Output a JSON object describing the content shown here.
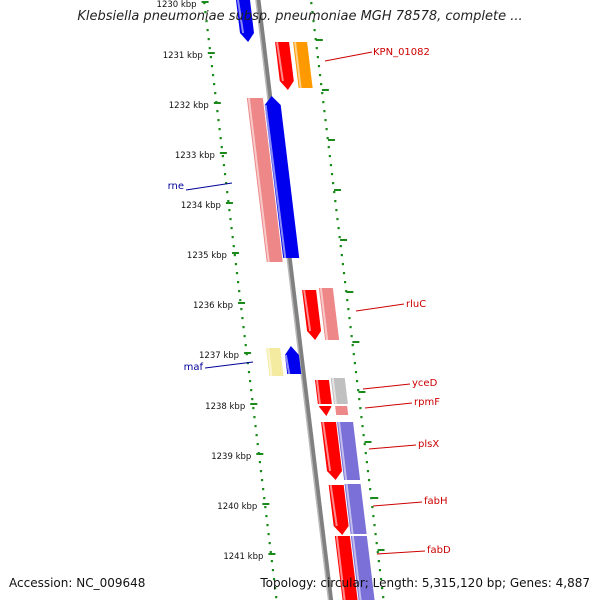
{
  "title": "Klebsiella pneumoniae subsp. pneumoniae MGH 78578, complete ...",
  "accession": "Accession: NC_009648",
  "topology": "Topology: circular; Length: 5,315,120 bp; Genes: 4,887",
  "colors": {
    "backbone": "#808080",
    "tick": "#1a8a1a",
    "gene_red": "#ff0000",
    "gene_orange": "#ff9900",
    "gene_blue": "#0000ee",
    "gene_pink": "#ee8888",
    "gene_yellow": "#f4eaa0",
    "gene_gray": "#c0c0c0",
    "gene_purple": "#7a70d8",
    "label_red": "#cc0000",
    "label_blue": "#000099"
  },
  "ticks": [
    {
      "label": "1230 kbp"
    },
    {
      "label": "1231 kbp"
    },
    {
      "label": "1232 kbp"
    },
    {
      "label": "1233 kbp"
    },
    {
      "label": "1234 kbp"
    },
    {
      "label": "1235 kbp"
    },
    {
      "label": "1236 kbp"
    },
    {
      "label": "1237 kbp"
    },
    {
      "label": "1238 kbp"
    },
    {
      "label": "1239 kbp"
    },
    {
      "label": "1240 kbp"
    },
    {
      "label": "1241 kbp"
    }
  ],
  "gene_labels": [
    {
      "text": "KPN_01082",
      "color": "label_red"
    },
    {
      "text": "rne",
      "color": "label_blue"
    },
    {
      "text": "rluC",
      "color": "label_red"
    },
    {
      "text": "maf",
      "color": "label_blue"
    },
    {
      "text": "yceD",
      "color": "label_red"
    },
    {
      "text": "rpmF",
      "color": "label_red"
    },
    {
      "text": "plsX",
      "color": "label_red"
    },
    {
      "text": "fabH",
      "color": "label_red"
    },
    {
      "text": "fabD",
      "color": "label_red"
    }
  ]
}
